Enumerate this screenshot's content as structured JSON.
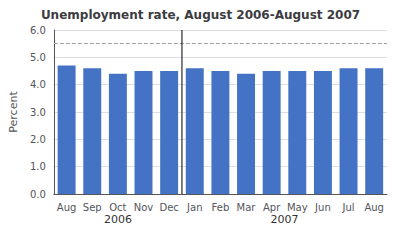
{
  "chart_data": {
    "type": "bar",
    "title": "Unemployment rate, August 2006-August 2007",
    "ylabel": "Percent",
    "categories": [
      "Aug",
      "Sep",
      "Oct",
      "Nov",
      "Dec",
      "Jan",
      "Feb",
      "Mar",
      "Apr",
      "May",
      "Jun",
      "Jul",
      "Aug"
    ],
    "values": [
      4.7,
      4.6,
      4.4,
      4.5,
      4.5,
      4.6,
      4.5,
      4.4,
      4.5,
      4.5,
      4.5,
      4.6,
      4.6
    ],
    "color": "#4472C4",
    "ylim": [
      0.0,
      6.0
    ],
    "yticks": [
      {
        "value": 0.0,
        "label": "0.0"
      },
      {
        "value": 1.0,
        "label": "1.0"
      },
      {
        "value": 2.0,
        "label": "2.0"
      },
      {
        "value": 3.0,
        "label": "3.0"
      },
      {
        "value": 4.0,
        "label": "4.0"
      },
      {
        "value": 5.0,
        "label": "5.0"
      },
      {
        "value": 6.0,
        "label": "6.0"
      }
    ],
    "grid": true,
    "reference_lines": [
      {
        "value": 5.5,
        "color": "#A0A0A0",
        "line_style": "dashed"
      }
    ],
    "category_groups": [
      {
        "label": "2006",
        "count": 5
      },
      {
        "label": "2007",
        "count": 8
      }
    ]
  }
}
